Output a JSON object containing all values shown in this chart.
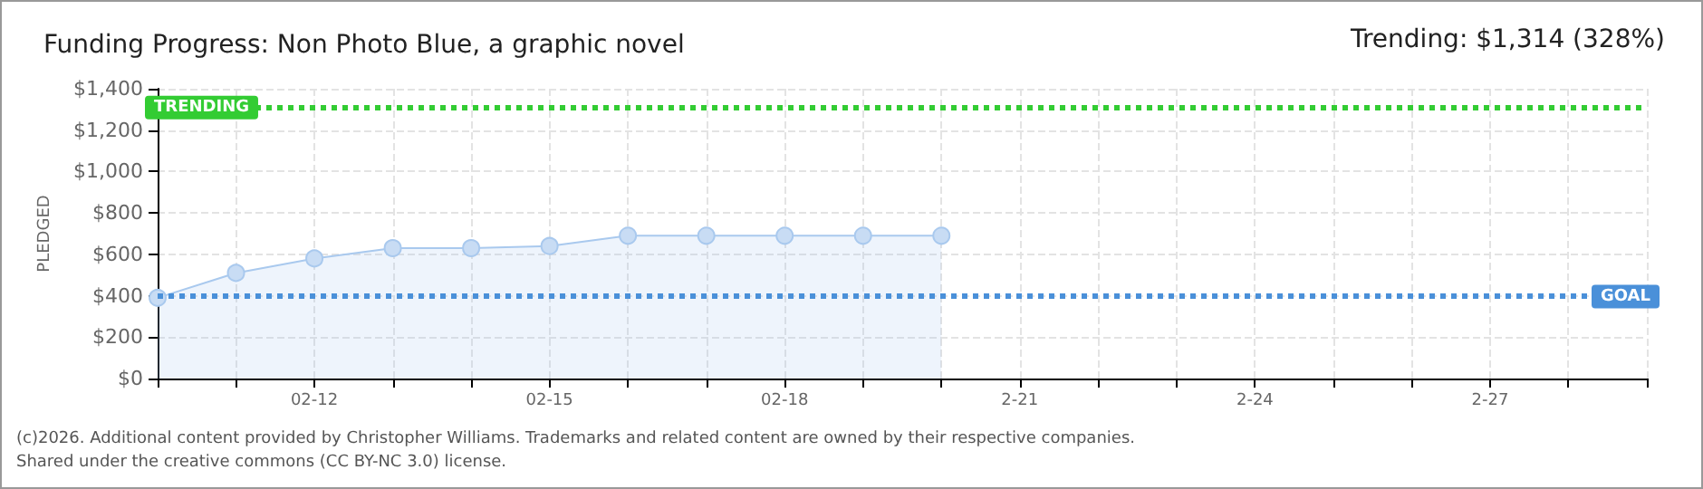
{
  "chart_data": {
    "type": "area",
    "title": "Funding Progress: Non Photo Blue, a graphic novel",
    "subtitle": "Trending: $1,314 (328%)",
    "ylabel": "PLEDGED",
    "categories": [
      null,
      null,
      "02-12",
      null,
      null,
      "02-15",
      null,
      null,
      "02-18",
      null,
      null,
      "2-21",
      null,
      null,
      "2-24",
      null,
      null,
      "2-27",
      null,
      null
    ],
    "series": [
      {
        "color": "#a9c9ee",
        "values": [
          390,
          510,
          580,
          630,
          630,
          640,
          690,
          690,
          690,
          690,
          690,
          null,
          null,
          null,
          null,
          null,
          null,
          null,
          null,
          null
        ]
      }
    ],
    "ylim": [
      0,
      1400
    ],
    "yticks": [
      {
        "value": 0,
        "label": "$0"
      },
      {
        "value": 200,
        "label": "$200"
      },
      {
        "value": 400,
        "label": "$400"
      },
      {
        "value": 600,
        "label": "$600"
      },
      {
        "value": 800,
        "label": "$800"
      },
      {
        "value": 1000,
        "label": "$1,000"
      },
      {
        "value": 1200,
        "label": "$1,200"
      },
      {
        "value": 1400,
        "label": "$1,400"
      }
    ],
    "ref_lines": [
      {
        "axis": "y",
        "value": 1314,
        "label": "TRENDING",
        "color": "#33cc33",
        "line_style": "dotted"
      },
      {
        "axis": "y",
        "value": 400,
        "label": "GOAL",
        "color": "#4a90d9",
        "line_style": "dotted"
      }
    ],
    "grid": true,
    "marker": "circle",
    "annotations": [
      "(c)2026. Additional content provided by Christopher Williams. Trademarks and related content are owned by their respective companies.",
      "Shared under the creative commons (CC BY-NC 3.0) license."
    ]
  }
}
